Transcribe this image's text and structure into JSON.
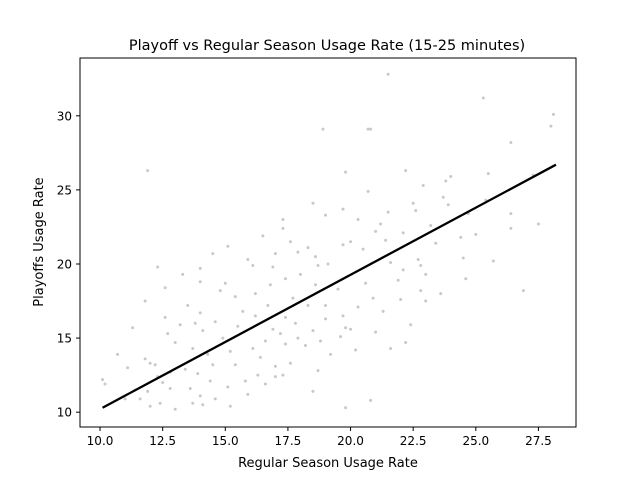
{
  "chart_data": {
    "type": "scatter",
    "title": "Playoff vs Regular Season Usage Rate (15-25 minutes)",
    "xlabel": "Regular Season Usage Rate",
    "ylabel": "Playoffs Usage Rate",
    "xlim": [
      9.2,
      29.0
    ],
    "ylim": [
      9.0,
      33.9
    ],
    "xticks": [
      "10.0",
      "12.5",
      "15.0",
      "17.5",
      "20.0",
      "22.5",
      "25.0",
      "27.5"
    ],
    "yticks": [
      "10",
      "15",
      "20",
      "25",
      "30"
    ],
    "grid": false,
    "point_color": "#c8c8c8",
    "line_color": "#000000",
    "fit_line": {
      "x": [
        10.1,
        28.2
      ],
      "y": [
        10.3,
        26.7
      ]
    },
    "points": [
      [
        21.5,
        32.8
      ],
      [
        25.3,
        31.2
      ],
      [
        28.1,
        30.1
      ],
      [
        28.0,
        29.3
      ],
      [
        26.4,
        28.2
      ],
      [
        18.9,
        29.1
      ],
      [
        20.7,
        29.1
      ],
      [
        20.8,
        29.1
      ],
      [
        11.9,
        26.3
      ],
      [
        19.8,
        26.2
      ],
      [
        22.2,
        26.3
      ],
      [
        23.8,
        25.6
      ],
      [
        24.0,
        25.9
      ],
      [
        25.5,
        26.1
      ],
      [
        27.3,
        26.0
      ],
      [
        22.9,
        25.3
      ],
      [
        20.7,
        24.9
      ],
      [
        18.5,
        24.1
      ],
      [
        22.5,
        24.1
      ],
      [
        23.7,
        24.5
      ],
      [
        22.6,
        23.6
      ],
      [
        23.9,
        24.0
      ],
      [
        25.4,
        24.3
      ],
      [
        22.1,
        22.1
      ],
      [
        27.5,
        22.7
      ],
      [
        26.4,
        22.4
      ],
      [
        24.7,
        23.4
      ],
      [
        26.4,
        23.4
      ],
      [
        17.3,
        23.0
      ],
      [
        17.3,
        22.4
      ],
      [
        19.0,
        23.3
      ],
      [
        19.7,
        23.7
      ],
      [
        20.3,
        23.0
      ],
      [
        21.2,
        22.7
      ],
      [
        21.5,
        23.5
      ],
      [
        20.0,
        21.5
      ],
      [
        21.0,
        22.2
      ],
      [
        20.5,
        21.0
      ],
      [
        21.4,
        21.6
      ],
      [
        21.6,
        20.1
      ],
      [
        22.7,
        20.3
      ],
      [
        22.8,
        19.9
      ],
      [
        22.1,
        19.6
      ],
      [
        23.0,
        19.3
      ],
      [
        24.5,
        20.4
      ],
      [
        25.7,
        20.2
      ],
      [
        26.9,
        18.2
      ],
      [
        24.6,
        19.0
      ],
      [
        23.6,
        18.0
      ],
      [
        23.0,
        17.5
      ],
      [
        22.0,
        17.6
      ],
      [
        22.4,
        15.9
      ],
      [
        22.2,
        14.7
      ],
      [
        19.8,
        15.7
      ],
      [
        19.7,
        16.5
      ],
      [
        18.5,
        15.5
      ],
      [
        19.6,
        15.1
      ],
      [
        21.3,
        16.8
      ],
      [
        20.3,
        17.1
      ],
      [
        20.9,
        17.7
      ],
      [
        19.5,
        18.3
      ],
      [
        19.0,
        17.2
      ],
      [
        18.6,
        18.6
      ],
      [
        18.0,
        19.3
      ],
      [
        17.4,
        19.0
      ],
      [
        16.8,
        18.6
      ],
      [
        16.9,
        19.8
      ],
      [
        17.0,
        20.7
      ],
      [
        18.6,
        20.5
      ],
      [
        18.7,
        19.9
      ],
      [
        19.1,
        20.0
      ],
      [
        17.9,
        20.8
      ],
      [
        16.1,
        19.9
      ],
      [
        15.9,
        20.3
      ],
      [
        15.1,
        21.2
      ],
      [
        14.5,
        20.7
      ],
      [
        13.3,
        19.3
      ],
      [
        12.3,
        19.8
      ],
      [
        11.8,
        17.5
      ],
      [
        12.6,
        18.4
      ],
      [
        14.0,
        18.8
      ],
      [
        14.8,
        18.2
      ],
      [
        15.4,
        17.8
      ],
      [
        16.2,
        18.0
      ],
      [
        16.7,
        17.2
      ],
      [
        16.2,
        16.5
      ],
      [
        17.4,
        16.4
      ],
      [
        17.8,
        16.0
      ],
      [
        17.2,
        15.3
      ],
      [
        17.9,
        15.0
      ],
      [
        18.2,
        14.5
      ],
      [
        17.4,
        14.6
      ],
      [
        16.6,
        14.8
      ],
      [
        16.1,
        14.3
      ],
      [
        16.4,
        13.7
      ],
      [
        17.0,
        13.1
      ],
      [
        17.3,
        12.5
      ],
      [
        18.7,
        12.8
      ],
      [
        15.8,
        12.1
      ],
      [
        15.4,
        13.2
      ],
      [
        15.2,
        14.1
      ],
      [
        14.9,
        15.0
      ],
      [
        15.5,
        15.8
      ],
      [
        14.6,
        16.1
      ],
      [
        14.0,
        16.7
      ],
      [
        13.5,
        17.2
      ],
      [
        13.8,
        16.0
      ],
      [
        14.1,
        15.5
      ],
      [
        13.2,
        15.9
      ],
      [
        12.6,
        16.4
      ],
      [
        12.7,
        15.3
      ],
      [
        13.0,
        14.7
      ],
      [
        13.7,
        14.3
      ],
      [
        14.3,
        13.9
      ],
      [
        14.5,
        13.2
      ],
      [
        13.9,
        12.6
      ],
      [
        13.4,
        12.9
      ],
      [
        12.8,
        12.7
      ],
      [
        12.3,
        12.4
      ],
      [
        12.0,
        13.3
      ],
      [
        11.8,
        13.6
      ],
      [
        11.1,
        13.0
      ],
      [
        10.7,
        13.9
      ],
      [
        11.3,
        15.7
      ],
      [
        12.2,
        13.2
      ],
      [
        12.5,
        12.0
      ],
      [
        11.9,
        11.4
      ],
      [
        11.4,
        11.5
      ],
      [
        11.6,
        10.9
      ],
      [
        10.2,
        11.9
      ],
      [
        10.1,
        12.2
      ],
      [
        12.0,
        10.4
      ],
      [
        12.4,
        10.6
      ],
      [
        13.0,
        10.2
      ],
      [
        13.7,
        10.6
      ],
      [
        14.1,
        10.5
      ],
      [
        14.6,
        10.9
      ],
      [
        15.2,
        10.4
      ],
      [
        14.0,
        11.1
      ],
      [
        15.9,
        11.2
      ],
      [
        16.6,
        11.9
      ],
      [
        17.0,
        12.4
      ],
      [
        19.8,
        10.3
      ],
      [
        20.8,
        10.8
      ],
      [
        18.5,
        11.4
      ],
      [
        17.6,
        13.3
      ],
      [
        16.3,
        12.5
      ],
      [
        15.1,
        11.7
      ],
      [
        13.6,
        11.6
      ],
      [
        14.4,
        12.1
      ],
      [
        12.8,
        11.6
      ],
      [
        11.0,
        10.9
      ],
      [
        20.2,
        14.2
      ],
      [
        19.2,
        13.9
      ],
      [
        20.0,
        15.6
      ],
      [
        21.0,
        15.4
      ],
      [
        21.6,
        14.3
      ],
      [
        19.0,
        16.3
      ],
      [
        18.3,
        17.2
      ],
      [
        20.6,
        18.7
      ],
      [
        21.9,
        18.9
      ],
      [
        22.8,
        18.2
      ],
      [
        23.4,
        21.4
      ],
      [
        24.4,
        21.8
      ],
      [
        25.0,
        22.0
      ],
      [
        23.2,
        22.6
      ],
      [
        19.7,
        21.3
      ],
      [
        18.3,
        21.1
      ],
      [
        17.6,
        21.5
      ],
      [
        16.5,
        21.9
      ],
      [
        14.0,
        19.7
      ],
      [
        15.7,
        16.8
      ],
      [
        16.9,
        15.6
      ],
      [
        18.8,
        14.8
      ],
      [
        17.7,
        17.7
      ],
      [
        15.0,
        18.7
      ]
    ]
  }
}
